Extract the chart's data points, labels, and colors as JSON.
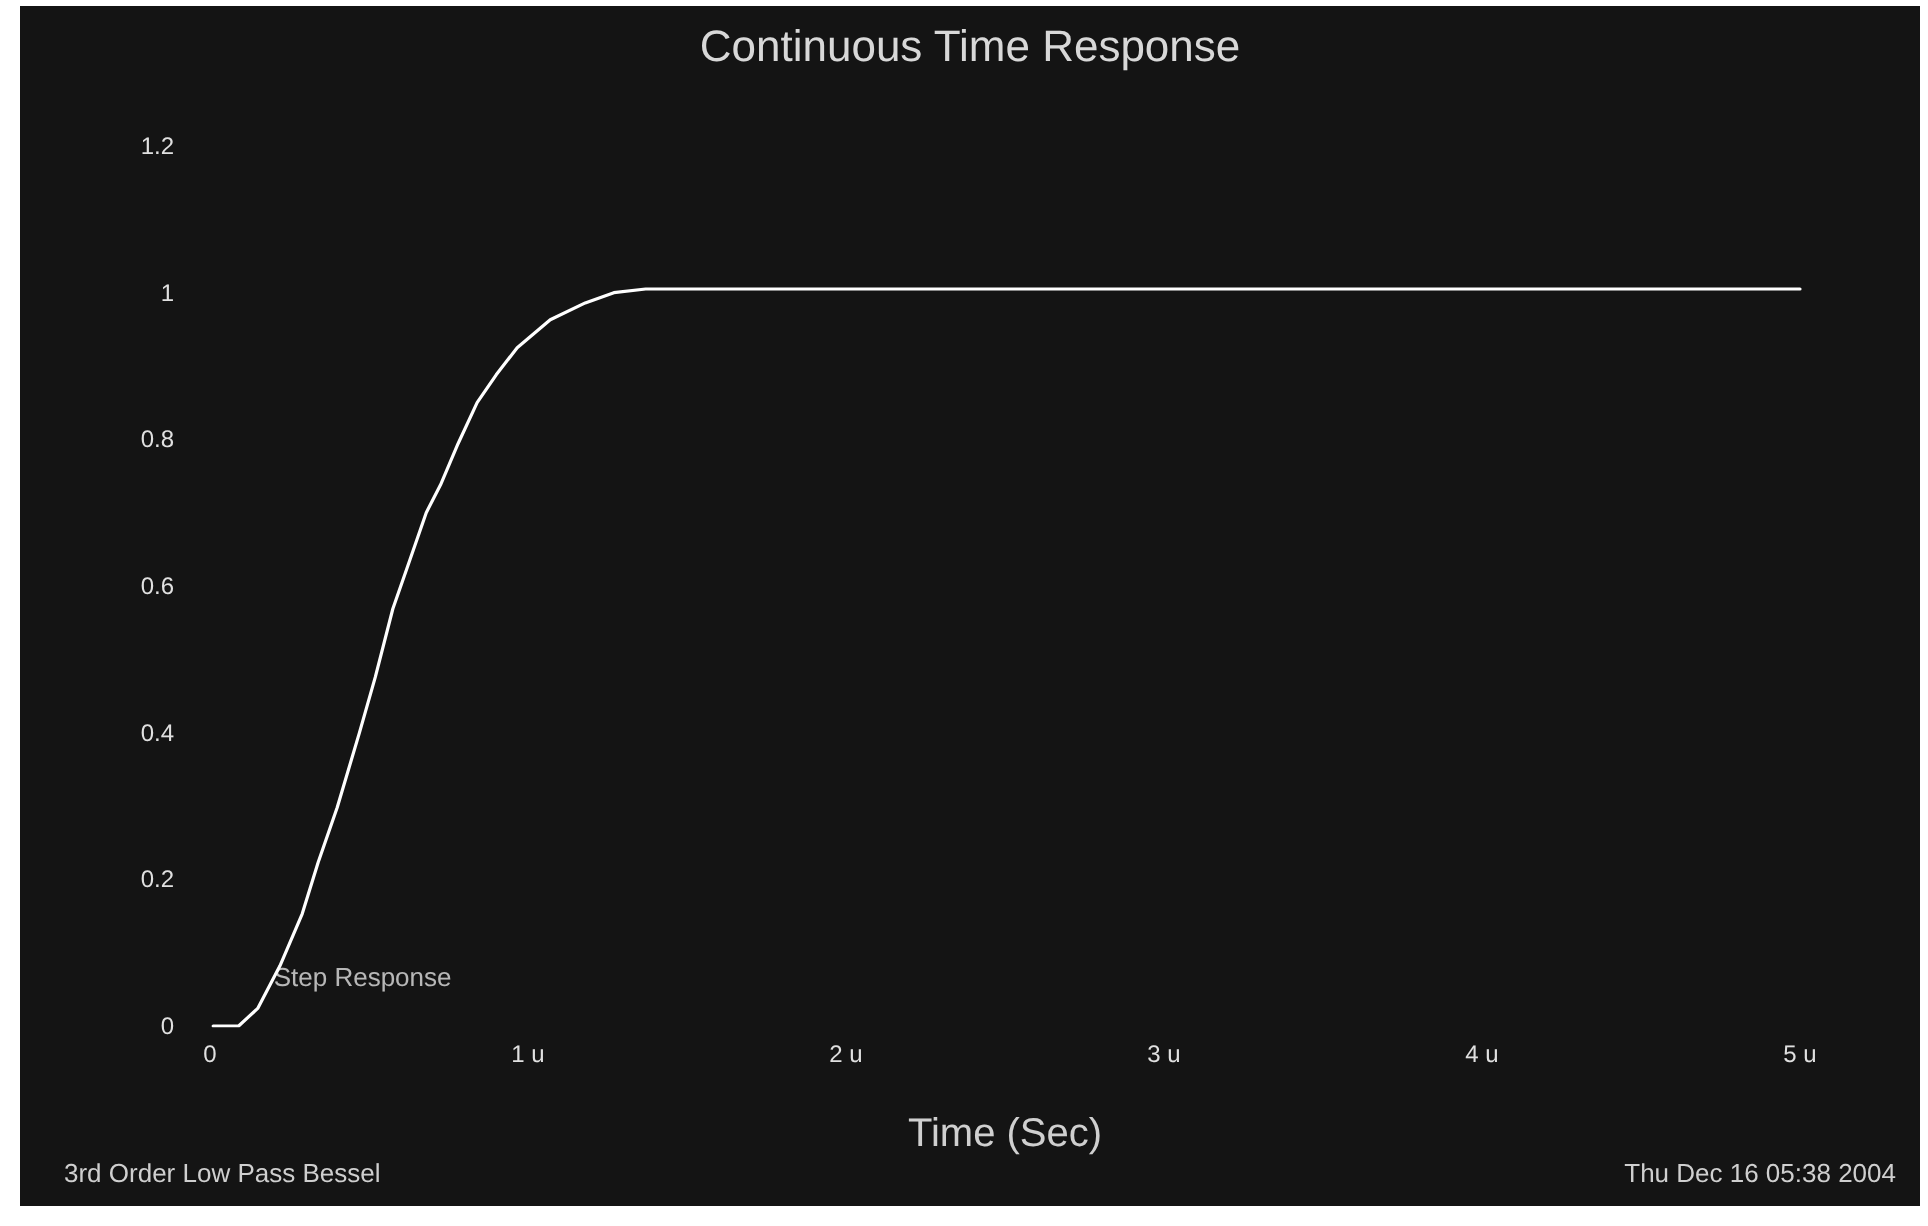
{
  "chart_data": {
    "type": "line",
    "title": "Continuous Time Response",
    "xlabel": "Time (Sec)",
    "x": [
      0.01,
      0.09,
      0.15,
      0.22,
      0.29,
      0.34,
      0.4,
      0.47,
      0.52,
      0.575,
      0.62,
      0.68,
      0.725,
      0.78,
      0.84,
      0.9,
      0.966,
      1.07,
      1.18,
      1.27,
      1.37,
      2,
      3,
      4,
      5
    ],
    "series": [
      {
        "color": "#ffffff",
        "values": [
          0,
          0,
          0.024,
          0.082,
          0.153,
          0.223,
          0.298,
          0.4,
          0.476,
          0.569,
          0.625,
          0.7,
          0.738,
          0.794,
          0.85,
          0.888,
          0.925,
          0.963,
          0.986,
          1.0,
          1.005,
          1.005,
          1.005,
          1.005,
          1.005
        ]
      }
    ],
    "xlim": [
      0,
      5
    ],
    "ylim": [
      0,
      1.2
    ],
    "xticks": [
      0,
      {
        "value": 1,
        "label": "1 u"
      },
      {
        "value": 2,
        "label": "2 u"
      },
      {
        "value": 3,
        "label": "3 u"
      },
      {
        "value": 4,
        "label": "4 u"
      },
      {
        "value": 5,
        "label": "5 u"
      }
    ],
    "yticks": [
      0,
      0.2,
      0.4,
      0.6,
      0.8,
      1,
      1.2
    ],
    "grid": false,
    "marker": "none",
    "line_style": "solid",
    "annotations": [
      {
        "text": "Step Response",
        "x": 0.15,
        "y": 0.024
      },
      "3rd Order Low Pass Bessel",
      "Thu Dec 16 05:38 2004"
    ]
  }
}
